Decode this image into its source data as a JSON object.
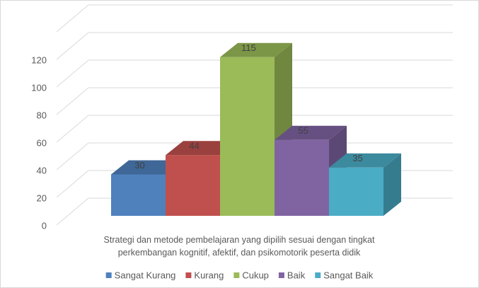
{
  "chart_data": {
    "type": "bar3d",
    "categories": [
      "Strategi dan metode pembelajaran yang dipilih sesuai dengan tingkat perkembangan kognitif, afektif, dan psikomotorik peserta didik"
    ],
    "series": [
      {
        "name": "Sangat Kurang",
        "color": "#4f81bd",
        "values": [
          30
        ]
      },
      {
        "name": "Kurang",
        "color": "#c0504d",
        "values": [
          44
        ]
      },
      {
        "name": "Cukup",
        "color": "#9bbb59",
        "values": [
          115
        ]
      },
      {
        "name": "Baik",
        "color": "#8064a2",
        "values": [
          55
        ]
      },
      {
        "name": "Sangat Baik",
        "color": "#4bacc6",
        "values": [
          35
        ]
      }
    ],
    "ylim": [
      0,
      140
    ],
    "yticks": [
      0,
      20,
      40,
      60,
      80,
      100,
      120
    ],
    "grid": true,
    "legend": "bottom"
  }
}
